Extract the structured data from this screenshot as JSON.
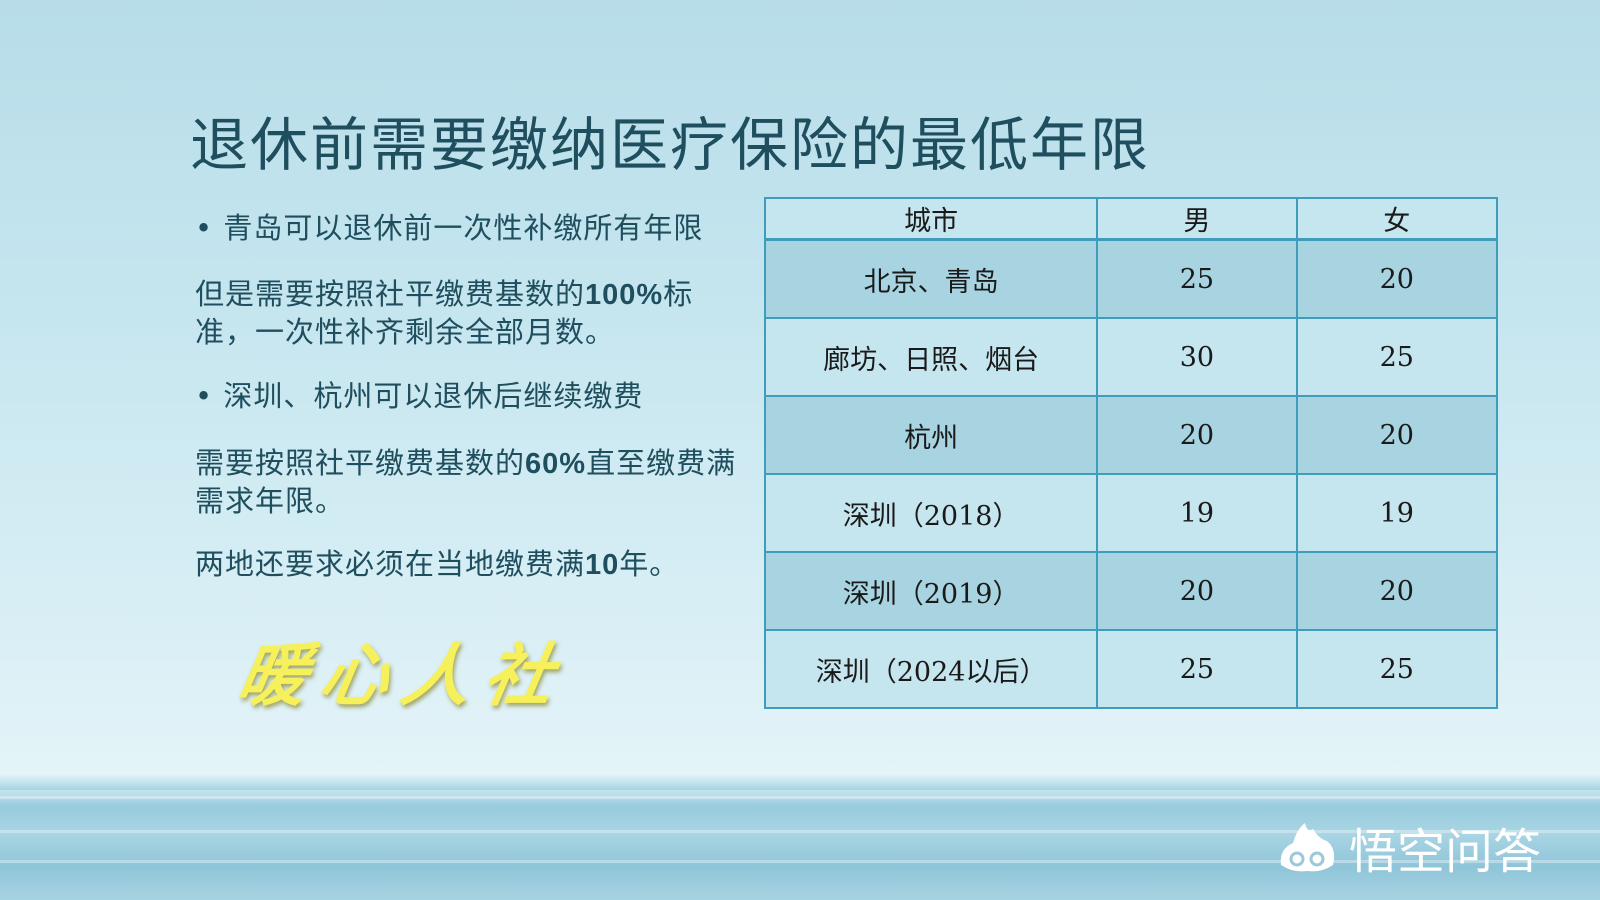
{
  "title": "退休前需要缴纳医疗保险的最低年限",
  "left": {
    "bullet1": "青岛可以退休前一次性补缴所有年限",
    "para1_a": "但是需要按照社平缴费基数的",
    "para1_b": "100%",
    "para1_c": "标准，一次性补齐剩余全部月数。",
    "bullet2": "深圳、杭州可以退休后继续缴费",
    "para2_a": "需要按照社平缴费基数的",
    "para2_b": "60%",
    "para2_c": "直至缴费满需求年限。",
    "para3_a": "两地还要求必须在当地缴费满",
    "para3_b": "10",
    "para3_c": "年。"
  },
  "table": {
    "headers": [
      "城市",
      "男",
      "女"
    ],
    "rows": [
      [
        "北京、青岛",
        "25",
        "20"
      ],
      [
        "廊坊、日照、烟台",
        "30",
        "25"
      ],
      [
        "杭州",
        "20",
        "20"
      ],
      [
        "深圳（2018）",
        "19",
        "19"
      ],
      [
        "深圳（2019）",
        "20",
        "20"
      ],
      [
        "深圳（2024以后）",
        "25",
        "25"
      ]
    ]
  },
  "watermark": "暖心人社",
  "logo": {
    "text": "悟空问答",
    "icon": "wukong-cloud-icon"
  }
}
